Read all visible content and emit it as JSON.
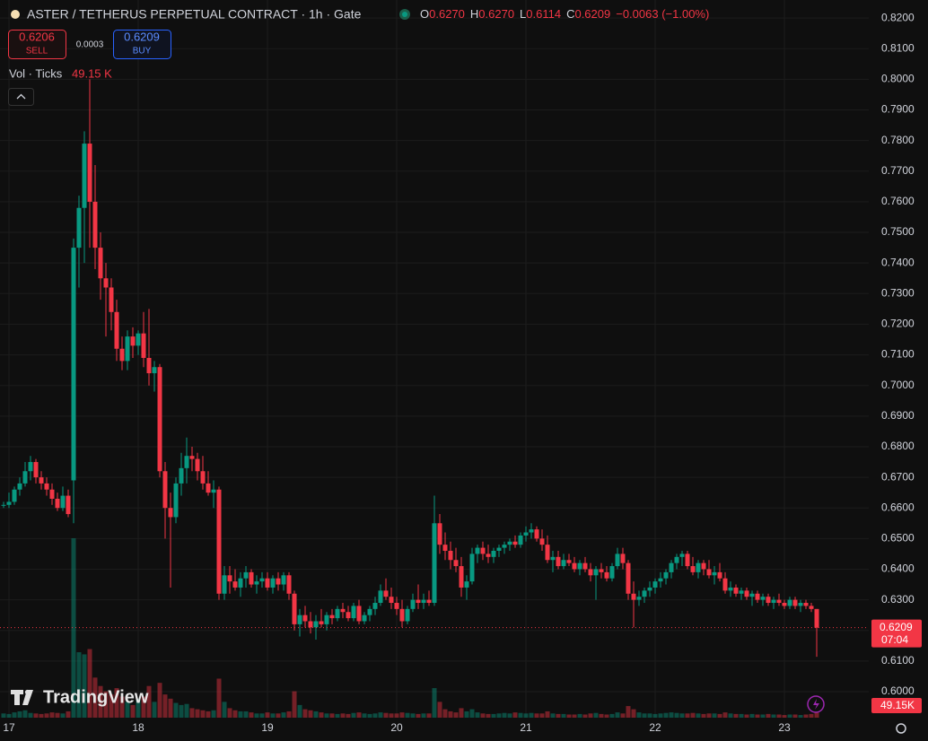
{
  "header": {
    "title": "ASTER / TETHERUS PERPETUAL CONTRACT · 1h · Gate",
    "ohlc": [
      {
        "key": "O",
        "value": "0.6270"
      },
      {
        "key": "H",
        "value": "0.6270"
      },
      {
        "key": "L",
        "value": "0.6114"
      },
      {
        "key": "C",
        "value": "0.6209"
      }
    ],
    "change": "−0.0063 (−1.00%)"
  },
  "trade": {
    "sell_price": "0.6206",
    "sell": "SELL",
    "spread": "0.0003",
    "buy_price": "0.6209",
    "buy": "BUY"
  },
  "indicator": {
    "name": "Vol · Ticks",
    "value": "49.15 K"
  },
  "watermark": "TradingView",
  "chart_data": {
    "type": "candlestick",
    "categories": [
      null,
      "17",
      null,
      null,
      null,
      null,
      null,
      null,
      null,
      null,
      null,
      null,
      null,
      null,
      null,
      null,
      null,
      null,
      null,
      null,
      null,
      null,
      null,
      null,
      null,
      "18",
      null,
      null,
      null,
      null,
      null,
      null,
      null,
      null,
      null,
      null,
      null,
      null,
      null,
      null,
      null,
      null,
      null,
      null,
      null,
      null,
      null,
      null,
      null,
      "19",
      null,
      null,
      null,
      null,
      null,
      null,
      null,
      null,
      null,
      null,
      null,
      null,
      null,
      null,
      null,
      null,
      null,
      null,
      null,
      null,
      null,
      null,
      null,
      "20",
      null,
      null,
      null,
      null,
      null,
      null,
      null,
      null,
      null,
      null,
      null,
      null,
      null,
      null,
      null,
      null,
      null,
      null,
      null,
      null,
      null,
      null,
      null,
      "21",
      null,
      null,
      null,
      null,
      null,
      null,
      null,
      null,
      null,
      null,
      null,
      null,
      null,
      null,
      null,
      null,
      null,
      null,
      null,
      null,
      null,
      null,
      null,
      "22",
      null,
      null,
      null,
      null,
      null,
      null,
      null,
      null,
      null,
      null,
      null,
      null,
      null,
      null,
      null,
      null,
      null,
      null,
      null,
      null,
      null,
      null,
      null,
      "23",
      null,
      null,
      null,
      null,
      null,
      null
    ],
    "open": [
      0.661,
      0.661,
      0.662,
      0.666,
      0.668,
      0.672,
      0.675,
      0.67,
      0.668,
      0.666,
      0.663,
      0.66,
      0.664,
      0.669,
      0.745,
      0.758,
      0.779,
      0.76,
      0.745,
      0.735,
      0.732,
      0.724,
      0.712,
      0.708,
      0.716,
      0.713,
      0.717,
      0.709,
      0.704,
      0.706,
      0.672,
      0.66,
      0.657,
      0.668,
      0.673,
      0.677,
      0.676,
      0.672,
      0.668,
      0.665,
      0.666,
      0.632,
      0.638,
      0.636,
      0.634,
      0.637,
      0.639,
      0.635,
      0.636,
      0.637,
      0.634,
      0.637,
      0.635,
      0.638,
      0.632,
      0.622,
      0.625,
      0.623,
      0.621,
      0.623,
      0.622,
      0.625,
      0.624,
      0.627,
      0.626,
      0.624,
      0.628,
      0.623,
      0.625,
      0.627,
      0.629,
      0.633,
      0.631,
      0.629,
      0.627,
      0.623,
      0.627,
      0.63,
      0.629,
      0.63,
      0.629,
      0.655,
      0.648,
      0.646,
      0.643,
      0.641,
      0.634,
      0.636,
      0.645,
      0.647,
      0.645,
      0.644,
      0.646,
      0.647,
      0.648,
      0.649,
      0.648,
      0.651,
      0.652,
      0.653,
      0.65,
      0.648,
      0.643,
      0.644,
      0.641,
      0.643,
      0.642,
      0.64,
      0.642,
      0.64,
      0.638,
      0.64,
      0.639,
      0.637,
      0.641,
      0.645,
      0.642,
      0.632,
      0.63,
      0.631,
      0.633,
      0.634,
      0.636,
      0.637,
      0.639,
      0.642,
      0.644,
      0.645,
      0.641,
      0.639,
      0.642,
      0.64,
      0.638,
      0.639,
      0.637,
      0.633,
      0.634,
      0.632,
      0.633,
      0.631,
      0.632,
      0.63,
      0.631,
      0.629,
      0.63,
      0.629,
      0.628,
      0.63,
      0.628,
      0.629,
      0.628,
      0.627
    ],
    "high": [
      0.662,
      0.665,
      0.667,
      0.67,
      0.675,
      0.677,
      0.676,
      0.672,
      0.67,
      0.668,
      0.665,
      0.667,
      0.666,
      0.748,
      0.762,
      0.783,
      0.8,
      0.772,
      0.75,
      0.74,
      0.735,
      0.728,
      0.716,
      0.718,
      0.719,
      0.718,
      0.724,
      0.725,
      0.708,
      0.707,
      0.675,
      0.665,
      0.67,
      0.678,
      0.683,
      0.68,
      0.678,
      0.677,
      0.672,
      0.669,
      0.667,
      0.641,
      0.641,
      0.64,
      0.639,
      0.641,
      0.64,
      0.638,
      0.639,
      0.639,
      0.638,
      0.639,
      0.639,
      0.639,
      0.633,
      0.627,
      0.628,
      0.626,
      0.625,
      0.627,
      0.626,
      0.627,
      0.628,
      0.629,
      0.628,
      0.629,
      0.63,
      0.626,
      0.628,
      0.631,
      0.635,
      0.637,
      0.634,
      0.631,
      0.63,
      0.628,
      0.632,
      0.635,
      0.632,
      0.633,
      0.664,
      0.658,
      0.652,
      0.649,
      0.647,
      0.644,
      0.638,
      0.647,
      0.648,
      0.649,
      0.648,
      0.647,
      0.648,
      0.649,
      0.65,
      0.651,
      0.652,
      0.654,
      0.655,
      0.654,
      0.653,
      0.651,
      0.646,
      0.646,
      0.645,
      0.645,
      0.644,
      0.643,
      0.644,
      0.642,
      0.641,
      0.642,
      0.641,
      0.642,
      0.647,
      0.647,
      0.643,
      0.636,
      0.633,
      0.634,
      0.636,
      0.637,
      0.639,
      0.64,
      0.643,
      0.645,
      0.646,
      0.646,
      0.644,
      0.643,
      0.643,
      0.643,
      0.641,
      0.642,
      0.639,
      0.636,
      0.635,
      0.634,
      0.634,
      0.633,
      0.633,
      0.632,
      0.632,
      0.631,
      0.632,
      0.63,
      0.631,
      0.631,
      0.63,
      0.63,
      0.629,
      0.627
    ],
    "low": [
      0.66,
      0.66,
      0.661,
      0.664,
      0.667,
      0.669,
      0.668,
      0.666,
      0.664,
      0.661,
      0.659,
      0.659,
      0.657,
      0.655,
      0.732,
      0.74,
      0.745,
      0.738,
      0.728,
      0.716,
      0.718,
      0.708,
      0.705,
      0.705,
      0.709,
      0.71,
      0.706,
      0.7,
      0.698,
      0.67,
      0.65,
      0.634,
      0.655,
      0.664,
      0.668,
      0.672,
      0.669,
      0.666,
      0.664,
      0.66,
      0.63,
      0.63,
      0.632,
      0.633,
      0.631,
      0.634,
      0.634,
      0.632,
      0.634,
      0.633,
      0.632,
      0.633,
      0.633,
      0.63,
      0.62,
      0.618,
      0.621,
      0.619,
      0.617,
      0.621,
      0.62,
      0.622,
      0.623,
      0.624,
      0.623,
      0.623,
      0.622,
      0.622,
      0.623,
      0.625,
      0.628,
      0.63,
      0.627,
      0.625,
      0.621,
      0.622,
      0.626,
      0.627,
      0.627,
      0.628,
      0.628,
      0.645,
      0.643,
      0.64,
      0.639,
      0.631,
      0.63,
      0.635,
      0.642,
      0.643,
      0.642,
      0.642,
      0.644,
      0.645,
      0.646,
      0.647,
      0.647,
      0.649,
      0.65,
      0.649,
      0.646,
      0.642,
      0.639,
      0.64,
      0.64,
      0.641,
      0.639,
      0.638,
      0.639,
      0.636,
      0.63,
      0.637,
      0.636,
      0.636,
      0.64,
      0.64,
      0.63,
      0.621,
      0.628,
      0.629,
      0.631,
      0.632,
      0.634,
      0.635,
      0.637,
      0.64,
      0.641,
      0.64,
      0.638,
      0.637,
      0.638,
      0.637,
      0.635,
      0.636,
      0.632,
      0.631,
      0.631,
      0.63,
      0.63,
      0.628,
      0.629,
      0.628,
      0.628,
      0.627,
      0.628,
      0.627,
      0.627,
      0.627,
      0.626,
      0.627,
      0.626,
      0.6114
    ],
    "close": [
      0.661,
      0.662,
      0.666,
      0.668,
      0.672,
      0.675,
      0.67,
      0.668,
      0.666,
      0.663,
      0.66,
      0.664,
      0.658,
      0.745,
      0.758,
      0.779,
      0.76,
      0.745,
      0.735,
      0.732,
      0.724,
      0.712,
      0.708,
      0.716,
      0.713,
      0.717,
      0.709,
      0.704,
      0.706,
      0.672,
      0.66,
      0.657,
      0.668,
      0.673,
      0.677,
      0.676,
      0.672,
      0.668,
      0.665,
      0.666,
      0.632,
      0.638,
      0.636,
      0.634,
      0.637,
      0.639,
      0.635,
      0.636,
      0.637,
      0.634,
      0.637,
      0.635,
      0.638,
      0.632,
      0.622,
      0.625,
      0.623,
      0.621,
      0.623,
      0.622,
      0.625,
      0.624,
      0.627,
      0.626,
      0.624,
      0.628,
      0.623,
      0.625,
      0.627,
      0.629,
      0.633,
      0.631,
      0.629,
      0.627,
      0.623,
      0.627,
      0.63,
      0.629,
      0.63,
      0.629,
      0.655,
      0.648,
      0.646,
      0.643,
      0.641,
      0.634,
      0.636,
      0.645,
      0.647,
      0.645,
      0.644,
      0.646,
      0.647,
      0.648,
      0.649,
      0.648,
      0.651,
      0.652,
      0.653,
      0.65,
      0.648,
      0.643,
      0.644,
      0.641,
      0.643,
      0.642,
      0.64,
      0.642,
      0.64,
      0.638,
      0.64,
      0.639,
      0.637,
      0.641,
      0.645,
      0.642,
      0.632,
      0.63,
      0.631,
      0.633,
      0.634,
      0.636,
      0.637,
      0.639,
      0.642,
      0.644,
      0.645,
      0.641,
      0.639,
      0.642,
      0.64,
      0.638,
      0.639,
      0.637,
      0.633,
      0.634,
      0.632,
      0.633,
      0.631,
      0.632,
      0.63,
      0.631,
      0.629,
      0.63,
      0.629,
      0.628,
      0.63,
      0.628,
      0.629,
      0.628,
      0.627,
      0.6209
    ],
    "volume": [
      40000,
      35000,
      50000,
      60000,
      70000,
      45000,
      40000,
      35000,
      40000,
      50000,
      45000,
      40000,
      60000,
      1700000,
      620000,
      600000,
      650000,
      380000,
      300000,
      250000,
      220000,
      280000,
      200000,
      150000,
      120000,
      180000,
      200000,
      300000,
      150000,
      330000,
      220000,
      180000,
      140000,
      120000,
      130000,
      90000,
      80000,
      70000,
      60000,
      70000,
      370000,
      150000,
      90000,
      70000,
      60000,
      60000,
      50000,
      40000,
      40000,
      50000,
      40000,
      40000,
      50000,
      60000,
      250000,
      120000,
      80000,
      70000,
      60000,
      50000,
      40000,
      40000,
      35000,
      40000,
      35000,
      45000,
      50000,
      40000,
      35000,
      40000,
      50000,
      45000,
      40000,
      40000,
      50000,
      45000,
      40000,
      35000,
      40000,
      40000,
      280000,
      150000,
      80000,
      60000,
      50000,
      90000,
      60000,
      80000,
      50000,
      40000,
      35000,
      35000,
      40000,
      45000,
      40000,
      50000,
      45000,
      40000,
      45000,
      40000,
      40000,
      60000,
      40000,
      35000,
      35000,
      30000,
      30000,
      35000,
      30000,
      40000,
      45000,
      35000,
      30000,
      35000,
      50000,
      40000,
      110000,
      80000,
      50000,
      40000,
      40000,
      35000,
      40000,
      45000,
      50000,
      45000,
      40000,
      40000,
      45000,
      40000,
      35000,
      40000,
      40000,
      35000,
      50000,
      40000,
      35000,
      35000,
      30000,
      35000,
      30000,
      30000,
      35000,
      30000,
      30000,
      25000,
      30000,
      30000,
      25000,
      30000,
      35000,
      49150
    ],
    "up_color": "#089981",
    "down_color": "#f23645",
    "ylim": [
      0.5915,
      0.8259
    ],
    "yticks": [
      {
        "value": 0.6,
        "label": "0.6000"
      },
      {
        "value": 0.61,
        "label": "0.6100"
      },
      {
        "value": 0.62,
        "label": "0.6200"
      },
      {
        "value": 0.63,
        "label": "0.6300"
      },
      {
        "value": 0.64,
        "label": "0.6400"
      },
      {
        "value": 0.65,
        "label": "0.6500"
      },
      {
        "value": 0.66,
        "label": "0.6600"
      },
      {
        "value": 0.67,
        "label": "0.6700"
      },
      {
        "value": 0.68,
        "label": "0.6800"
      },
      {
        "value": 0.69,
        "label": "0.6900"
      },
      {
        "value": 0.7,
        "label": "0.7000"
      },
      {
        "value": 0.71,
        "label": "0.7100"
      },
      {
        "value": 0.72,
        "label": "0.7200"
      },
      {
        "value": 0.73,
        "label": "0.7300"
      },
      {
        "value": 0.74,
        "label": "0.7400"
      },
      {
        "value": 0.75,
        "label": "0.7500"
      },
      {
        "value": 0.76,
        "label": "0.7600"
      },
      {
        "value": 0.77,
        "label": "0.7700"
      },
      {
        "value": 0.78,
        "label": "0.7800"
      },
      {
        "value": 0.79,
        "label": "0.7900"
      },
      {
        "value": 0.8,
        "label": "0.8000"
      },
      {
        "value": 0.81,
        "label": "0.8100"
      },
      {
        "value": 0.82,
        "label": "0.8200"
      }
    ],
    "grid": true,
    "last_price": 0.6209,
    "countdown": "07:04",
    "volume_label": "49.15K"
  }
}
